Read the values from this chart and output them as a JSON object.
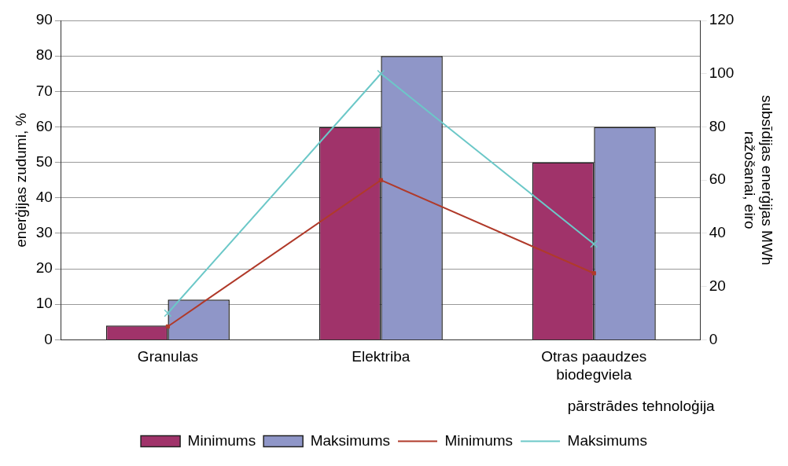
{
  "chart_data": {
    "type": "bar",
    "xlabel": "pārstrādes tehnoloģija",
    "ylabel": "enerģijas zudumi, %",
    "y2label": "subsīdijas enerģijas MWh ražošanai, eiro",
    "categories": [
      "Granulas",
      "Elektriba",
      "Otras paaudzes biodegviela"
    ],
    "series": [
      {
        "name": "Minimums",
        "color": "#a0336a",
        "values": [
          4,
          60,
          50
        ]
      },
      {
        "name": "Maksimums",
        "color": "#8f96c8",
        "values": [
          11.3,
          80,
          60
        ]
      },
      {
        "name": "Minimums",
        "type": "line",
        "axis": "y2",
        "marker": "square",
        "color": "#b03a2a",
        "values": [
          5,
          60,
          25
        ]
      },
      {
        "name": "Maksimums",
        "type": "line",
        "axis": "y2",
        "marker": "cross",
        "color": "#6cc8c8",
        "values": [
          10,
          100,
          36
        ]
      }
    ],
    "ylim": [
      0,
      90
    ],
    "yticks": [
      0,
      10,
      20,
      30,
      40,
      50,
      60,
      70,
      80,
      90
    ],
    "y2lim": [
      0,
      120
    ],
    "y2ticks": [
      0,
      20,
      40,
      60,
      80,
      100,
      120
    ],
    "grid": "y",
    "legend": "bottom"
  }
}
